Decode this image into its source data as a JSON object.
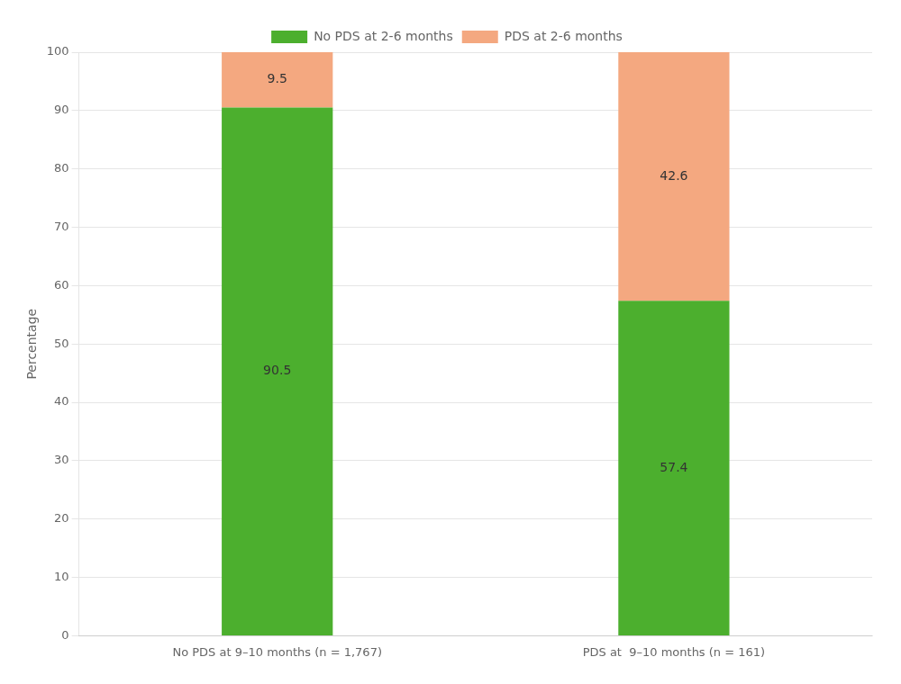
{
  "chart_data": {
    "type": "bar",
    "stacked": true,
    "ylabel": "Percentage",
    "categories": [
      "No PDS at 9–10 months (n = 1,767)",
      "PDS at  9–10 months (n = 161)"
    ],
    "series": [
      {
        "name": "No PDS at 2-6 months",
        "color": "#4CAF2E",
        "values": [
          90.5,
          57.4
        ]
      },
      {
        "name": "PDS at 2-6 months",
        "color": "#F4A880",
        "values": [
          9.5,
          42.6
        ]
      }
    ],
    "ylim": [
      0,
      100
    ],
    "yticks": [
      0,
      10,
      20,
      30,
      40,
      50,
      60,
      70,
      80,
      90,
      100
    ],
    "grid": true,
    "legend": "top",
    "data_labels": true
  }
}
